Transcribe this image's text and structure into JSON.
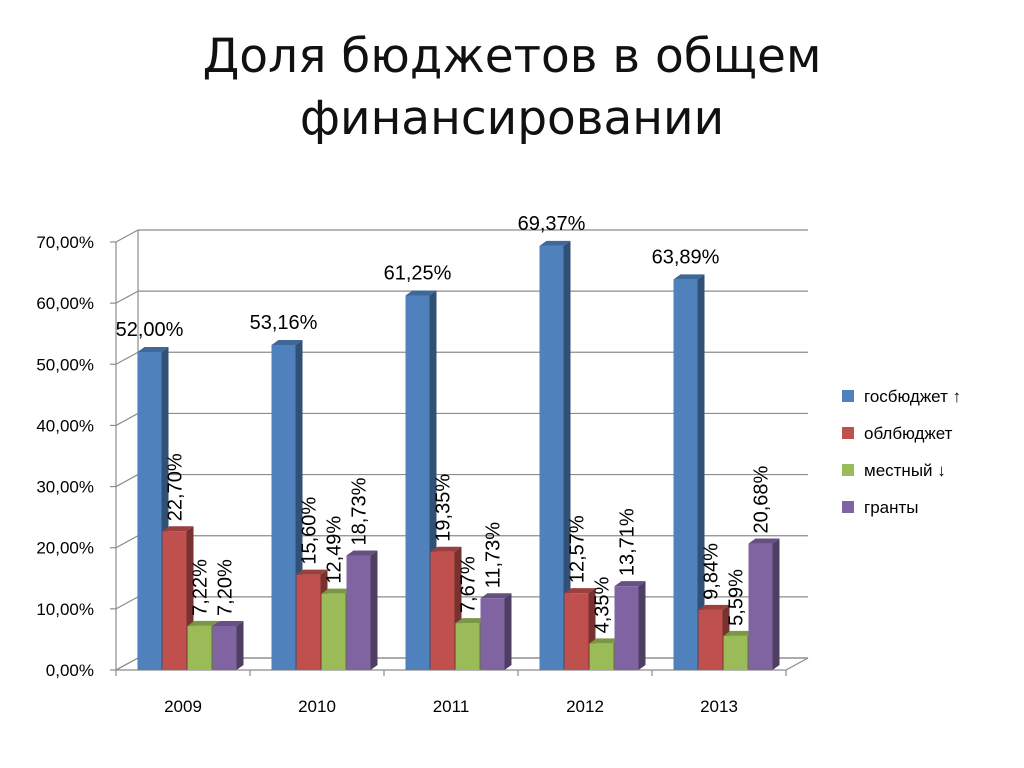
{
  "title_lines": [
    "Доля бюджетов в общем",
    "финансировании"
  ],
  "chart_data": {
    "type": "bar",
    "categories": [
      "2009",
      "2010",
      "2011",
      "2012",
      "2013"
    ],
    "series": [
      {
        "name": "госбюджет ↑",
        "color": "#4F81BD",
        "values": [
          52.0,
          53.16,
          61.25,
          69.37,
          63.89
        ],
        "labels": [
          "52,00%",
          "53,16%",
          "61,25%",
          "69,37%",
          "63,89%"
        ]
      },
      {
        "name": "облбюджет",
        "color": "#C0504D",
        "values": [
          22.7,
          15.6,
          19.35,
          12.57,
          9.84
        ],
        "labels": [
          "22,70%",
          "15,60%",
          "19,35%",
          "12,57%",
          "9,84%"
        ]
      },
      {
        "name": "местный ↓",
        "color": "#9BBB59",
        "values": [
          7.22,
          12.49,
          7.67,
          4.35,
          5.59
        ],
        "labels": [
          "7,22%",
          "12,49%",
          "7,67%",
          "4,35%",
          "5,59%"
        ]
      },
      {
        "name": "гранты",
        "color": "#8064A2",
        "values": [
          7.2,
          18.73,
          11.73,
          13.71,
          20.68
        ],
        "labels": [
          "7,20%",
          "18,73%",
          "11,73%",
          "13,71%",
          "20,68%"
        ]
      }
    ],
    "y_ticks": [
      "0,00%",
      "10,00%",
      "20,00%",
      "30,00%",
      "40,00%",
      "50,00%",
      "60,00%",
      "70,00%"
    ],
    "ylim": [
      0,
      70
    ],
    "grid": true,
    "legend_position": "right",
    "three_d": true
  }
}
